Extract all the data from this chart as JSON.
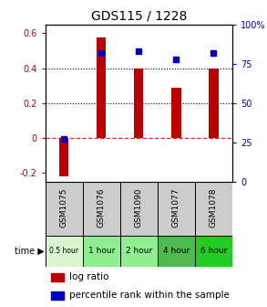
{
  "title": "GDS115 / 1228",
  "samples": [
    "GSM1075",
    "GSM1076",
    "GSM1090",
    "GSM1077",
    "GSM1078"
  ],
  "time_labels": [
    "0.5 hour",
    "1 hour",
    "2 hour",
    "4 hour",
    "6 hour"
  ],
  "time_colors": [
    "#d8f5d0",
    "#90ee90",
    "#90ee90",
    "#4dbb4d",
    "#22cc22"
  ],
  "log_ratios": [
    -0.22,
    0.575,
    0.4,
    0.285,
    0.4
  ],
  "percentile_ranks": [
    27,
    82,
    83,
    78,
    82
  ],
  "bar_color": "#bb0000",
  "dot_color": "#0000bb",
  "ylim_left": [
    -0.25,
    0.65
  ],
  "ylim_right": [
    0,
    100
  ],
  "yticks_left": [
    -0.2,
    0.0,
    0.2,
    0.4,
    0.6
  ],
  "yticks_right": [
    0,
    25,
    50,
    75,
    100
  ],
  "ytick_labels_left": [
    "-0.2",
    "0",
    "0.2",
    "0.4",
    "0.6"
  ],
  "ytick_labels_right": [
    "0",
    "25",
    "50",
    "75",
    "100%"
  ],
  "hline_dotted": [
    0.2,
    0.4
  ],
  "hline_zero": 0.0,
  "bg_color": "#ffffff",
  "bar_width": 0.25
}
